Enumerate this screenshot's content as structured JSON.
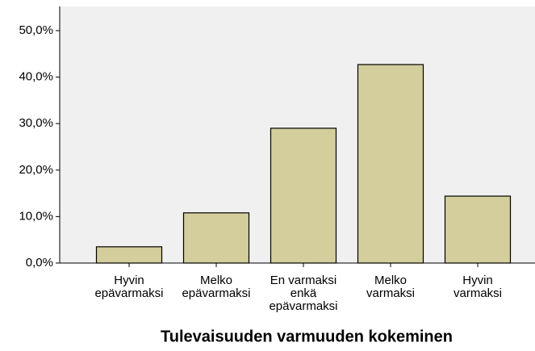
{
  "chart_data": {
    "type": "bar",
    "x_label": "Tulevaisuuden varmuuden kokeminen",
    "categories": [
      "Hyvin\nepävarmaksi",
      "Melko\nepävarmaksi",
      "En varmaksi\nenkä\nepävarmaksi",
      "Melko\nvarmaksi",
      "Hyvin\nvarmaksi"
    ],
    "values": [
      3.5,
      10.8,
      29.0,
      42.7,
      14.4
    ],
    "color": "#d3ce9b",
    "ylim": [
      0,
      55.2
    ],
    "yticks": [
      {
        "value": 0,
        "label": "0,0%"
      },
      {
        "value": 10,
        "label": "10,0%"
      },
      {
        "value": 20,
        "label": "20,0%"
      },
      {
        "value": 30,
        "label": "30,0%"
      },
      {
        "value": 40,
        "label": "40,0%"
      },
      {
        "value": 50,
        "label": "50,0%"
      }
    ]
  }
}
